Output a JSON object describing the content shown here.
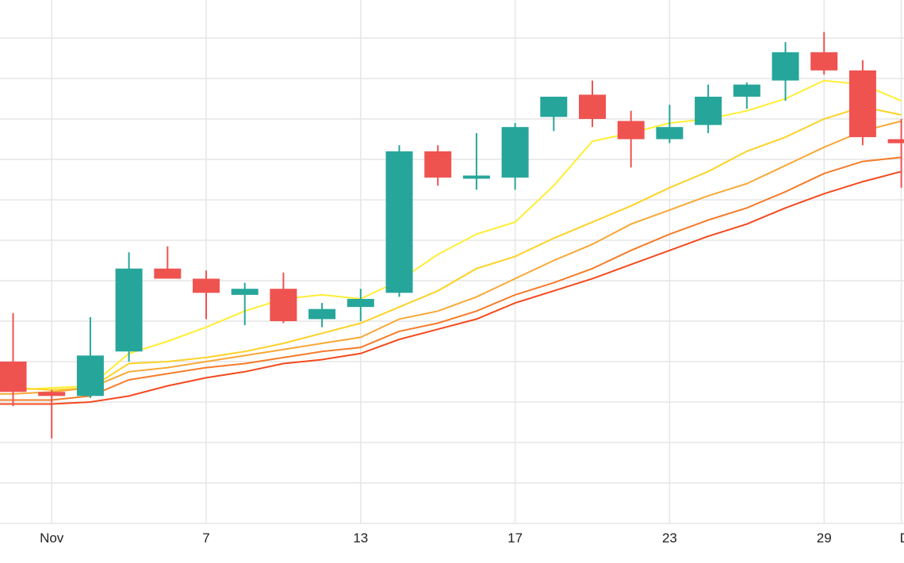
{
  "chart_data": {
    "type": "candlestick",
    "title": "",
    "xlabel": "",
    "ylabel": "",
    "x_tick_labels": [
      "Nov",
      "7",
      "13",
      "17",
      "23",
      "29",
      "De"
    ],
    "x_tick_positions_in_sessions": [
      1,
      5,
      9,
      13,
      17,
      21,
      23
    ],
    "y_range": [
      0,
      13
    ],
    "grid": true,
    "up_color": "#26a69a",
    "down_color": "#ef5350",
    "candles": [
      {
        "open": 4.0,
        "high": 5.2,
        "low": 2.9,
        "close": 3.25
      },
      {
        "open": 3.25,
        "high": 3.3,
        "low": 2.1,
        "close": 3.15
      },
      {
        "open": 3.15,
        "high": 5.1,
        "low": 3.1,
        "close": 4.15
      },
      {
        "open": 4.25,
        "high": 6.7,
        "low": 4.0,
        "close": 6.3
      },
      {
        "open": 6.3,
        "high": 6.85,
        "low": 6.05,
        "close": 6.05
      },
      {
        "open": 6.05,
        "high": 6.25,
        "low": 5.05,
        "close": 5.7
      },
      {
        "open": 5.65,
        "high": 5.95,
        "low": 4.9,
        "close": 5.8
      },
      {
        "open": 5.8,
        "high": 6.2,
        "low": 4.95,
        "close": 5.0
      },
      {
        "open": 5.05,
        "high": 5.45,
        "low": 4.85,
        "close": 5.3
      },
      {
        "open": 5.35,
        "high": 5.8,
        "low": 5.0,
        "close": 5.55
      },
      {
        "open": 5.7,
        "high": 9.35,
        "low": 5.6,
        "close": 9.2
      },
      {
        "open": 9.2,
        "high": 9.35,
        "low": 8.35,
        "close": 8.55
      },
      {
        "open": 8.55,
        "high": 9.65,
        "low": 8.25,
        "close": 8.6
      },
      {
        "open": 8.55,
        "high": 9.9,
        "low": 8.25,
        "close": 9.8
      },
      {
        "open": 10.05,
        "high": 10.55,
        "low": 9.7,
        "close": 10.55
      },
      {
        "open": 10.6,
        "high": 10.95,
        "low": 9.8,
        "close": 10.0
      },
      {
        "open": 9.95,
        "high": 10.2,
        "low": 8.8,
        "close": 9.5
      },
      {
        "open": 9.5,
        "high": 10.35,
        "low": 9.4,
        "close": 9.8
      },
      {
        "open": 9.85,
        "high": 10.85,
        "low": 9.65,
        "close": 10.55
      },
      {
        "open": 10.55,
        "high": 10.9,
        "low": 10.25,
        "close": 10.85
      },
      {
        "open": 10.95,
        "high": 11.9,
        "low": 10.45,
        "close": 11.65
      },
      {
        "open": 11.65,
        "high": 12.15,
        "low": 11.1,
        "close": 11.2
      },
      {
        "open": 11.2,
        "high": 11.45,
        "low": 9.35,
        "close": 9.55
      },
      {
        "open": 9.5,
        "high": 10.0,
        "low": 8.3,
        "close": 9.4
      }
    ],
    "moving_averages": [
      {
        "color": "#ffee33",
        "values": [
          3.3,
          3.35,
          3.4,
          4.2,
          4.5,
          4.85,
          5.25,
          5.55,
          5.65,
          5.55,
          6.0,
          6.65,
          7.15,
          7.45,
          8.35,
          9.45,
          9.65,
          9.9,
          10.0,
          10.2,
          10.5,
          10.95,
          10.85,
          10.45
        ]
      },
      {
        "color": "#fcd227",
        "values": [
          3.35,
          3.3,
          3.35,
          3.95,
          4.0,
          4.1,
          4.25,
          4.45,
          4.7,
          4.95,
          5.35,
          5.75,
          6.3,
          6.6,
          7.05,
          7.45,
          7.85,
          8.3,
          8.7,
          9.2,
          9.55,
          10.0,
          10.3,
          10.1
        ]
      },
      {
        "color": "#f7a836",
        "values": [
          3.2,
          3.25,
          3.35,
          3.75,
          3.85,
          4.0,
          4.15,
          4.3,
          4.45,
          4.6,
          5.05,
          5.25,
          5.6,
          6.05,
          6.5,
          6.9,
          7.4,
          7.75,
          8.1,
          8.4,
          8.85,
          9.3,
          9.7,
          9.95
        ]
      },
      {
        "color": "#f57c2b",
        "values": [
          3.05,
          3.05,
          3.15,
          3.55,
          3.7,
          3.85,
          3.95,
          4.1,
          4.25,
          4.35,
          4.75,
          4.95,
          5.25,
          5.65,
          5.95,
          6.3,
          6.75,
          7.15,
          7.5,
          7.8,
          8.2,
          8.65,
          8.95,
          9.05
        ]
      },
      {
        "color": "#f44a1f",
        "values": [
          2.95,
          2.95,
          3.0,
          3.15,
          3.4,
          3.6,
          3.75,
          3.95,
          4.05,
          4.2,
          4.55,
          4.8,
          5.05,
          5.45,
          5.75,
          6.05,
          6.4,
          6.75,
          7.1,
          7.4,
          7.8,
          8.15,
          8.45,
          8.7
        ]
      }
    ]
  }
}
